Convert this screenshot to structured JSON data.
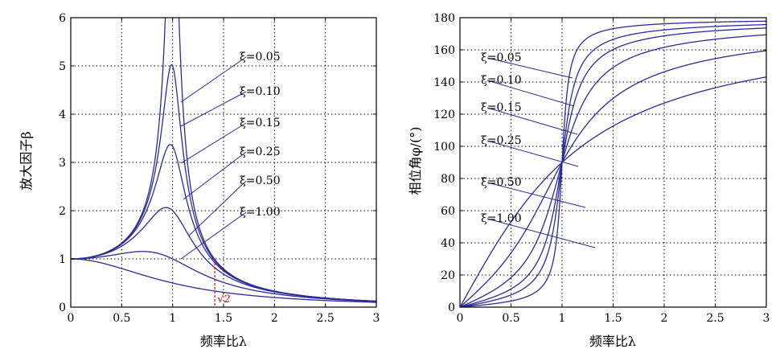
{
  "chart_data": [
    {
      "type": "line",
      "ylabel": "放大因子β",
      "xlabel": "频率比λ",
      "xlim": [
        0,
        3
      ],
      "ylim": [
        0,
        6
      ],
      "x_ticks": [
        "0",
        "0.5",
        "1",
        "1.5",
        "2",
        "2.5",
        "3"
      ],
      "y_ticks": [
        "0",
        "1",
        "2",
        "3",
        "4",
        "5",
        "6"
      ],
      "grid": true,
      "line_color": "#2a2a9a",
      "series": [
        {
          "name": "ξ=0.05",
          "zeta": 0.05
        },
        {
          "name": "ξ=0.10",
          "zeta": 0.1
        },
        {
          "name": "ξ=0.15",
          "zeta": 0.15
        },
        {
          "name": "ξ=0.25",
          "zeta": 0.25
        },
        {
          "name": "ξ=0.50",
          "zeta": 0.5
        },
        {
          "name": "ξ=1.00",
          "zeta": 1.0
        }
      ],
      "marker": {
        "label": "√2",
        "x": 1.414,
        "color": "#e00000"
      }
    },
    {
      "type": "line",
      "ylabel": "相位角φ/(°)",
      "xlabel": "频率比λ",
      "xlim": [
        0,
        3
      ],
      "ylim": [
        0,
        180
      ],
      "x_ticks": [
        "0",
        "0.5",
        "1",
        "1.5",
        "2",
        "2.5",
        "3"
      ],
      "y_ticks": [
        "0",
        "20",
        "40",
        "60",
        "80",
        "100",
        "120",
        "140",
        "160",
        "180"
      ],
      "grid": true,
      "line_color": "#2a2a9a",
      "series": [
        {
          "name": "ξ=0.05",
          "zeta": 0.05
        },
        {
          "name": "ξ=0.10",
          "zeta": 0.1
        },
        {
          "name": "ξ=0.15",
          "zeta": 0.15
        },
        {
          "name": "ξ=0.25",
          "zeta": 0.25
        },
        {
          "name": "ξ=0.50",
          "zeta": 0.5
        },
        {
          "name": "ξ=1.00",
          "zeta": 1.0
        }
      ]
    }
  ]
}
